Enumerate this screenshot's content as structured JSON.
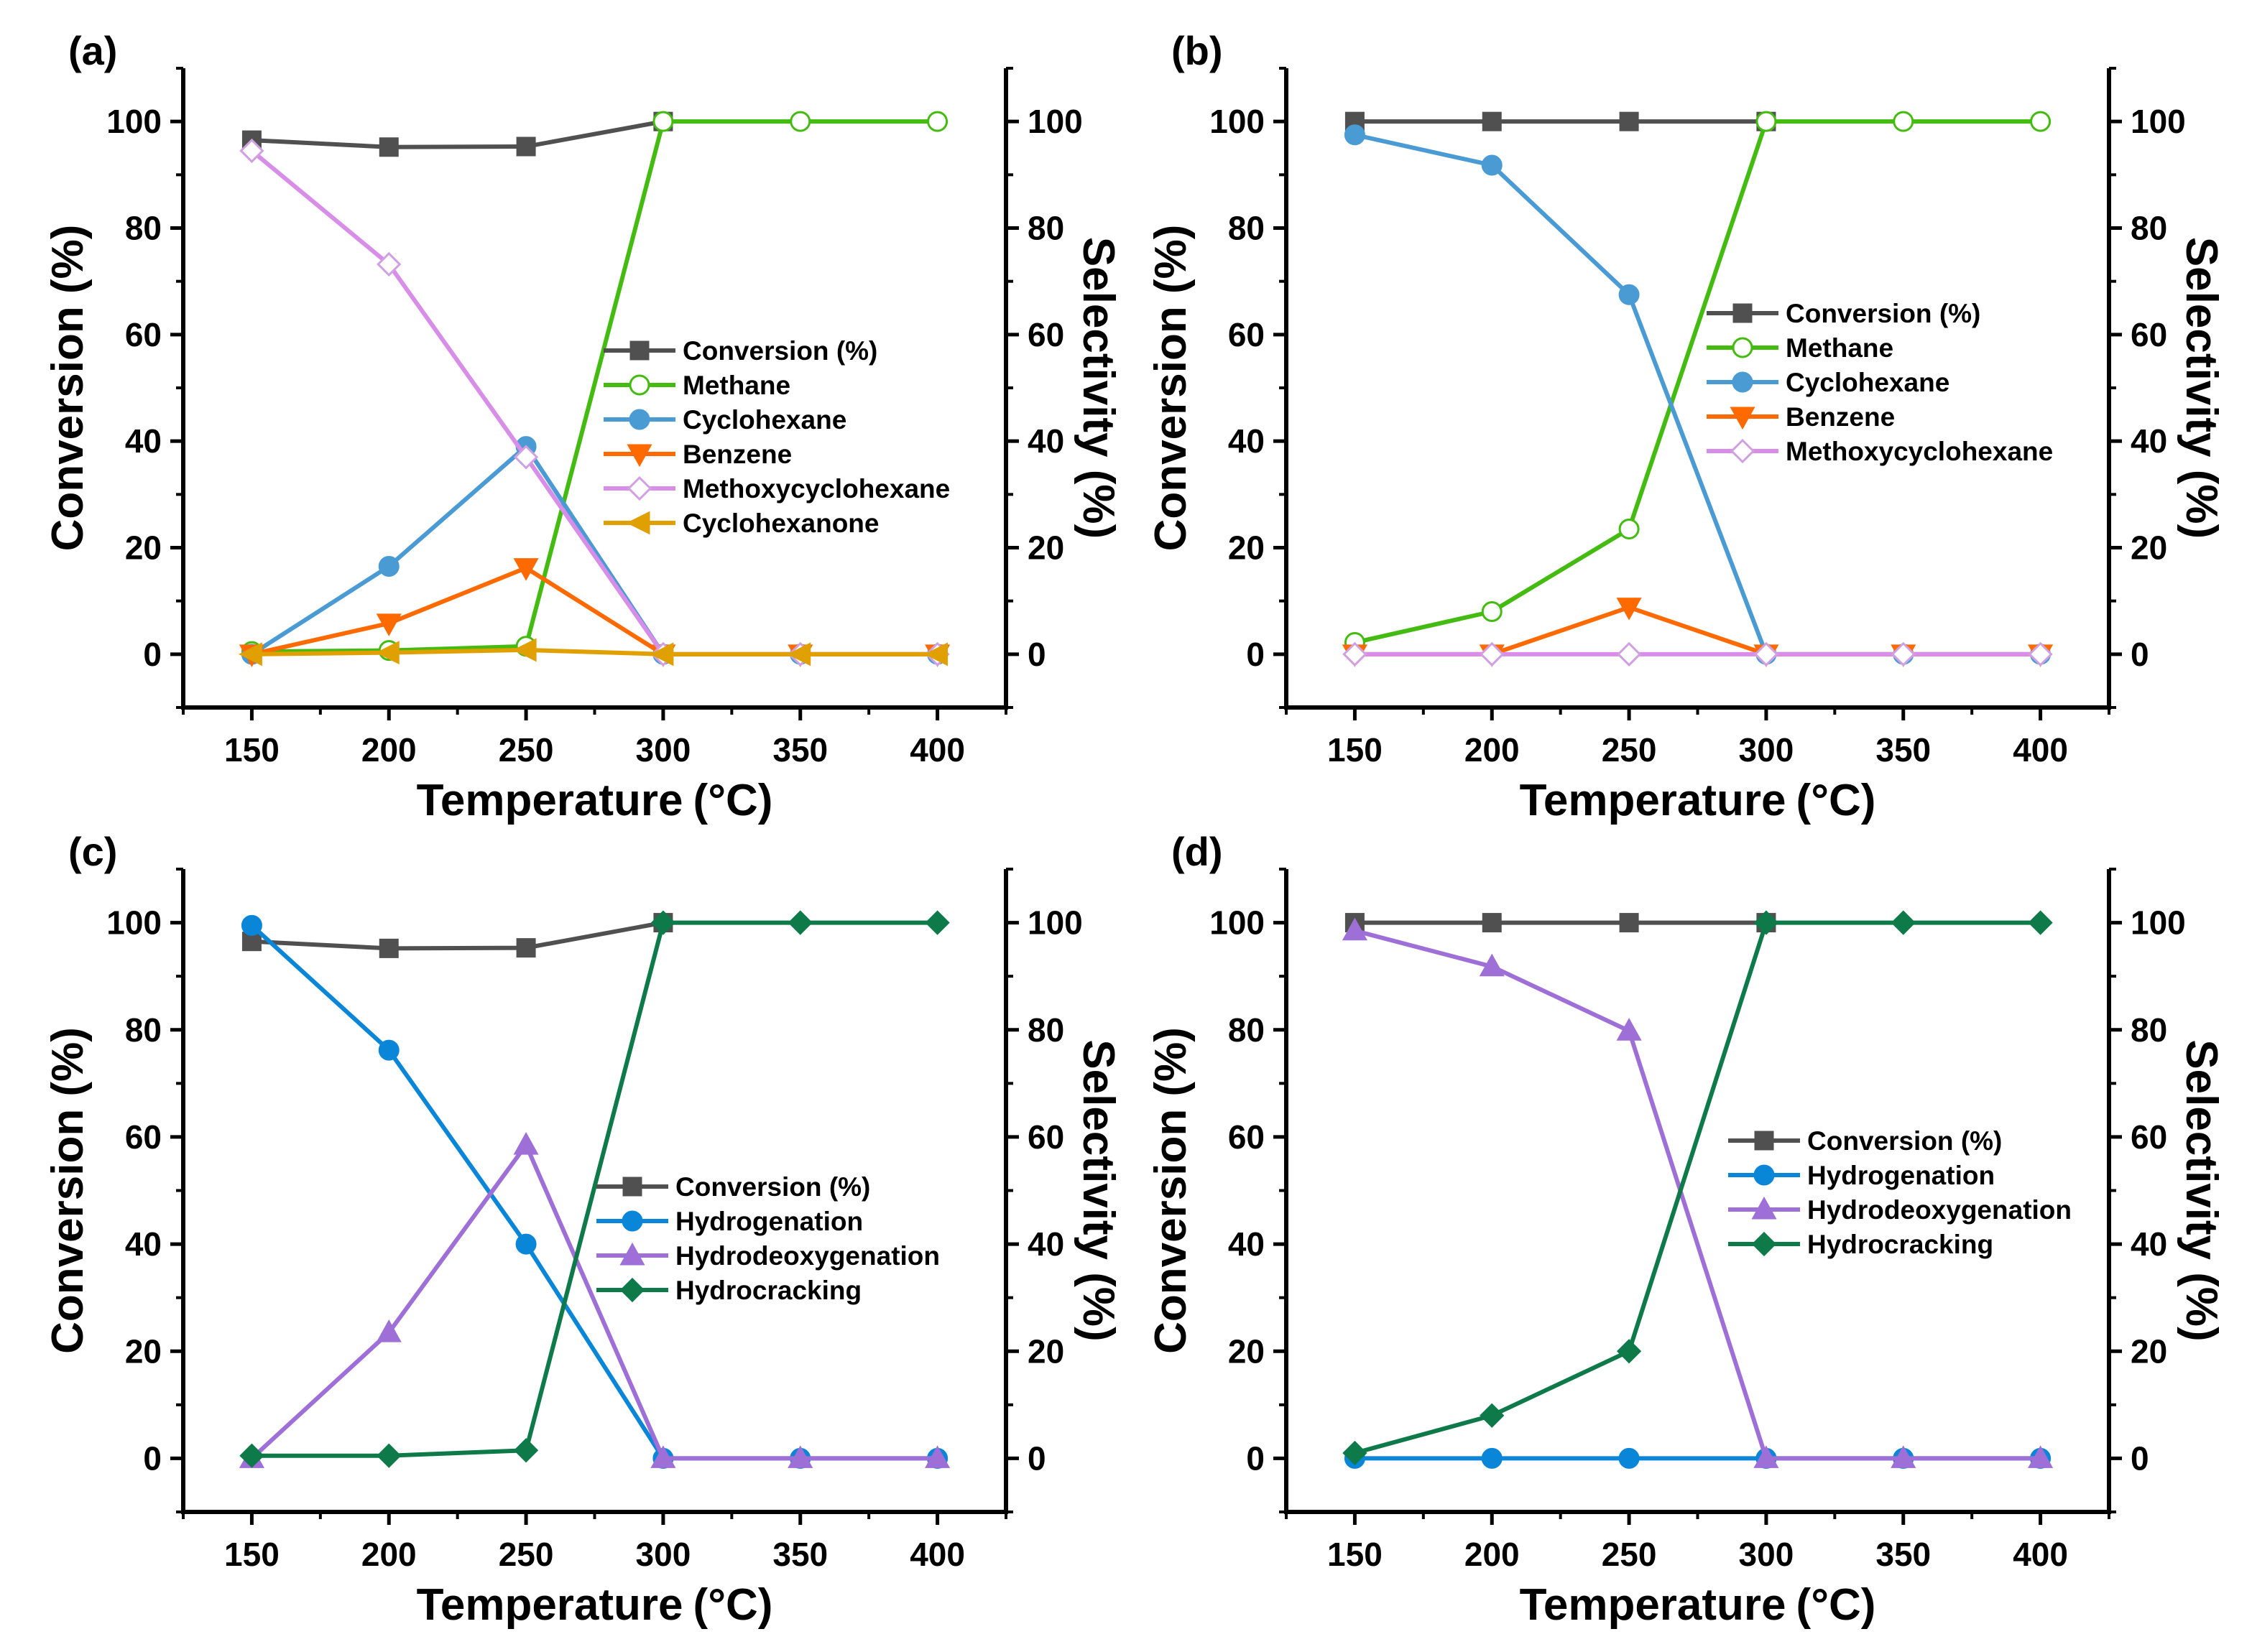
{
  "chart_data": [
    {
      "type": "line",
      "panel_label": "(a)",
      "xlabel": "Temperature",
      "xlabel_unit": "(°C)",
      "ylabel": "Conversion (%)",
      "y2label": "Selectivity (%)",
      "x": [
        150,
        200,
        250,
        300,
        350,
        400
      ],
      "xticks": [
        "150",
        "200",
        "250",
        "300",
        "350",
        "400"
      ],
      "yticks": [
        "0",
        "20",
        "40",
        "60",
        "80",
        "100"
      ],
      "y2ticks": [
        "0",
        "20",
        "40",
        "60",
        "80",
        "100"
      ],
      "xlim": [
        125,
        425
      ],
      "ylim": [
        -10,
        110
      ],
      "legend_position": "center-right",
      "series": [
        {
          "name": "Conversion (%)",
          "marker": "square",
          "filled": true,
          "color": "#505050",
          "values": [
            96.5,
            95.2,
            95.3,
            100,
            null,
            null
          ]
        },
        {
          "name": "Methane",
          "marker": "circle",
          "filled": false,
          "color": "#44bb11",
          "values": [
            0.5,
            0.7,
            1.5,
            100,
            100,
            100
          ]
        },
        {
          "name": "Cyclohexane",
          "marker": "circle",
          "filled": true,
          "color": "#4a9ad4",
          "values": [
            0,
            16.5,
            39,
            0,
            0,
            0
          ]
        },
        {
          "name": "Benzene",
          "marker": "triangle-down",
          "filled": true,
          "color": "#ff6a00",
          "values": [
            0,
            5.8,
            16.2,
            0,
            0,
            0
          ]
        },
        {
          "name": "Methoxycyclohexane",
          "marker": "diamond",
          "filled": false,
          "color": "#d88ee8",
          "values": [
            94.5,
            73.2,
            37,
            0,
            0,
            0
          ]
        },
        {
          "name": "Cyclohexanone",
          "marker": "triangle-left",
          "filled": true,
          "color": "#e0a000",
          "values": [
            0,
            0.3,
            0.8,
            0,
            0,
            0
          ]
        }
      ]
    },
    {
      "type": "line",
      "panel_label": "(b)",
      "xlabel": "Temperature",
      "xlabel_unit": "(°C)",
      "ylabel": "Conversion (%)",
      "y2label": "Selectivity (%)",
      "x": [
        150,
        200,
        250,
        300,
        350,
        400
      ],
      "xticks": [
        "150",
        "200",
        "250",
        "300",
        "350",
        "400"
      ],
      "yticks": [
        "0",
        "20",
        "40",
        "60",
        "80",
        "100"
      ],
      "y2ticks": [
        "0",
        "20",
        "40",
        "60",
        "80",
        "100"
      ],
      "xlim": [
        125,
        425
      ],
      "ylim": [
        -10,
        110
      ],
      "legend_position": "center-right",
      "series": [
        {
          "name": "Conversion (%)",
          "marker": "square",
          "filled": true,
          "color": "#505050",
          "values": [
            100,
            100,
            100,
            100,
            null,
            null
          ]
        },
        {
          "name": "Methane",
          "marker": "circle",
          "filled": false,
          "color": "#44bb11",
          "values": [
            2.2,
            8,
            23.5,
            100,
            100,
            100
          ]
        },
        {
          "name": "Cyclohexane",
          "marker": "circle",
          "filled": true,
          "color": "#4a9ad4",
          "values": [
            97.5,
            91.8,
            67.5,
            0,
            0,
            0
          ]
        },
        {
          "name": "Benzene",
          "marker": "triangle-down",
          "filled": true,
          "color": "#ff6a00",
          "values": [
            0,
            0,
            8.8,
            0,
            0,
            0
          ]
        },
        {
          "name": "Methoxycyclohexane",
          "marker": "diamond",
          "filled": false,
          "color": "#d88ee8",
          "values": [
            0,
            0,
            0,
            0,
            0,
            0
          ]
        }
      ]
    },
    {
      "type": "line",
      "panel_label": "(c)",
      "xlabel": "Temperature",
      "xlabel_unit": "(°C)",
      "ylabel": "Conversion (%)",
      "y2label": "Selectivity (%)",
      "x": [
        150,
        200,
        250,
        300,
        350,
        400
      ],
      "xticks": [
        "150",
        "200",
        "250",
        "300",
        "350",
        "400"
      ],
      "yticks": [
        "0",
        "20",
        "40",
        "60",
        "80",
        "100"
      ],
      "y2ticks": [
        "0",
        "20",
        "40",
        "60",
        "80",
        "100"
      ],
      "xlim": [
        125,
        425
      ],
      "ylim": [
        -10,
        110
      ],
      "legend_position": "center-right",
      "series": [
        {
          "name": "Conversion (%)",
          "marker": "square",
          "filled": true,
          "color": "#505050",
          "values": [
            96.5,
            95.2,
            95.3,
            100,
            null,
            null
          ]
        },
        {
          "name": "Hydrogenation",
          "marker": "circle",
          "filled": true,
          "color": "#0a86d8",
          "values": [
            99.5,
            76.2,
            40,
            0,
            0,
            0
          ]
        },
        {
          "name": "Hydrodeoxygenation",
          "marker": "triangle-up",
          "filled": true,
          "color": "#9f6fd8",
          "values": [
            0,
            23.5,
            58.5,
            0,
            0,
            0
          ]
        },
        {
          "name": "Hydrocracking",
          "marker": "diamond",
          "filled": true,
          "color": "#0e7a4a",
          "values": [
            0.5,
            0.5,
            1.5,
            100,
            100,
            100
          ]
        }
      ]
    },
    {
      "type": "line",
      "panel_label": "(d)",
      "xlabel": "Temperature",
      "xlabel_unit": "(°C)",
      "ylabel": "Conversion (%)",
      "y2label": "Selectivity (%)",
      "x": [
        150,
        200,
        250,
        300,
        350,
        400
      ],
      "xticks": [
        "150",
        "200",
        "250",
        "300",
        "350",
        "400"
      ],
      "yticks": [
        "0",
        "20",
        "40",
        "60",
        "80",
        "100"
      ],
      "y2ticks": [
        "0",
        "20",
        "40",
        "60",
        "80",
        "100"
      ],
      "xlim": [
        125,
        425
      ],
      "ylim": [
        -10,
        110
      ],
      "legend_position": "center-right",
      "series": [
        {
          "name": "Conversion (%)",
          "marker": "square",
          "filled": true,
          "color": "#505050",
          "values": [
            100,
            100,
            100,
            100,
            null,
            null
          ]
        },
        {
          "name": "Hydrogenation",
          "marker": "circle",
          "filled": true,
          "color": "#0a86d8",
          "values": [
            0,
            0,
            0,
            0,
            0,
            0
          ]
        },
        {
          "name": "Hydrodeoxygenation",
          "marker": "triangle-up",
          "filled": true,
          "color": "#9f6fd8",
          "values": [
            98.5,
            91.8,
            79.8,
            0,
            0,
            0
          ]
        },
        {
          "name": "Hydrocracking",
          "marker": "diamond",
          "filled": true,
          "color": "#0e7a4a",
          "values": [
            1,
            8,
            20,
            100,
            100,
            100
          ]
        }
      ]
    }
  ]
}
